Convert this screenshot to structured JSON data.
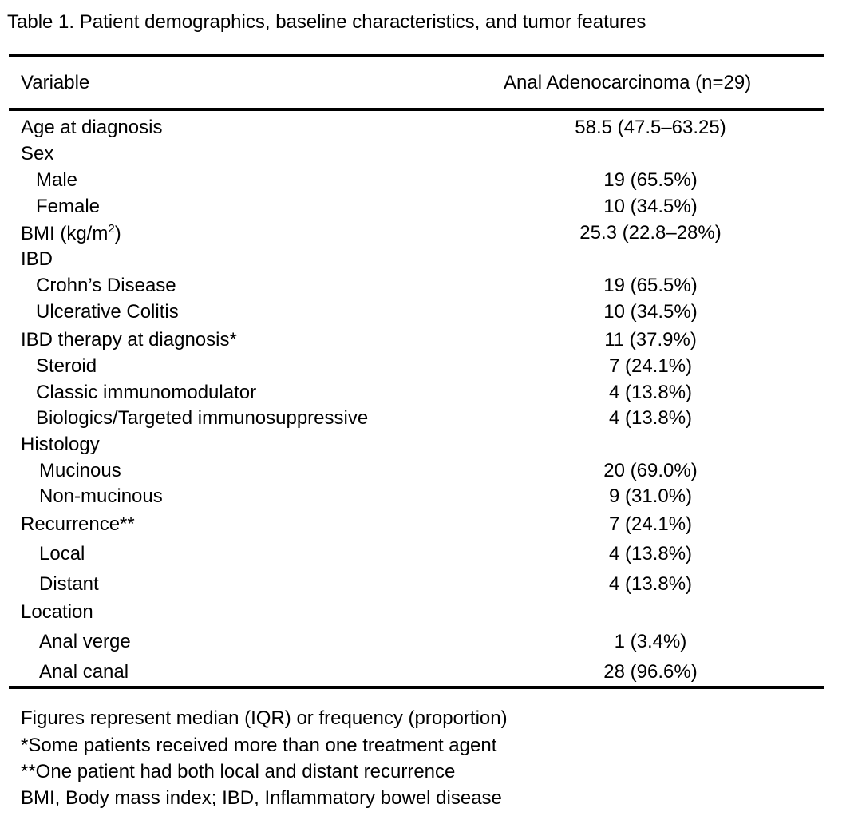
{
  "caption": "Table 1. Patient demographics, baseline characteristics, and tumor features",
  "header": {
    "variable": "Variable",
    "group": "Anal Adenocarcinoma (n=29)"
  },
  "rows": [
    {
      "label": "Age at diagnosis",
      "value": "58.5 (47.5–63.25)",
      "indent": 0
    },
    {
      "label": "Sex",
      "value": "",
      "indent": 0
    },
    {
      "label": "Male",
      "value": "19 (65.5%)",
      "indent": 1
    },
    {
      "label": "Female",
      "value": "10 (34.5%)",
      "indent": 1
    },
    {
      "label": "BMI (kg/m",
      "sup": "2",
      "label_suffix": ")",
      "value": "25.3 (22.8–28%)",
      "indent": 0
    },
    {
      "label": "IBD",
      "value": "",
      "indent": 0
    },
    {
      "label": "Crohn’s Disease",
      "value": "19 (65.5%)",
      "indent": 1
    },
    {
      "label": "Ulcerative Colitis",
      "value": "10 (34.5%)",
      "indent": 1
    },
    {
      "label": "IBD therapy at diagnosis*",
      "value": "11 (37.9%)",
      "indent": 0
    },
    {
      "label": "Steroid",
      "value": "7 (24.1%)",
      "indent": 1
    },
    {
      "label": "Classic immunomodulator",
      "value": "4 (13.8%)",
      "indent": 1
    },
    {
      "label": "Biologics/Targeted immunosuppressive",
      "value": "4 (13.8%)",
      "indent": 1
    },
    {
      "label": "Histology",
      "value": "",
      "indent": 0
    },
    {
      "label": "Mucinous",
      "value": "20 (69.0%)",
      "indent": 2
    },
    {
      "label": "Non-mucinous",
      "value": "9 (31.0%)",
      "indent": 2
    },
    {
      "label": "Recurrence**",
      "value": "7 (24.1%)",
      "indent": 0
    },
    {
      "label": "Local",
      "value": "4 (13.8%)",
      "indent": 2
    },
    {
      "label": "Distant",
      "value": "4 (13.8%)",
      "indent": 2
    },
    {
      "label": "Location",
      "value": "",
      "indent": 0
    },
    {
      "label": "Anal verge",
      "value": "1 (3.4%)",
      "indent": 2
    },
    {
      "label": "Anal canal",
      "value": "28 (96.6%)",
      "indent": 2
    }
  ],
  "footnotes": [
    "Figures represent median (IQR) or frequency (proportion)",
    "*Some patients received more than one treatment agent",
    "**One patient had both local and distant recurrence",
    "BMI, Body mass index; IBD, Inflammatory bowel disease"
  ]
}
